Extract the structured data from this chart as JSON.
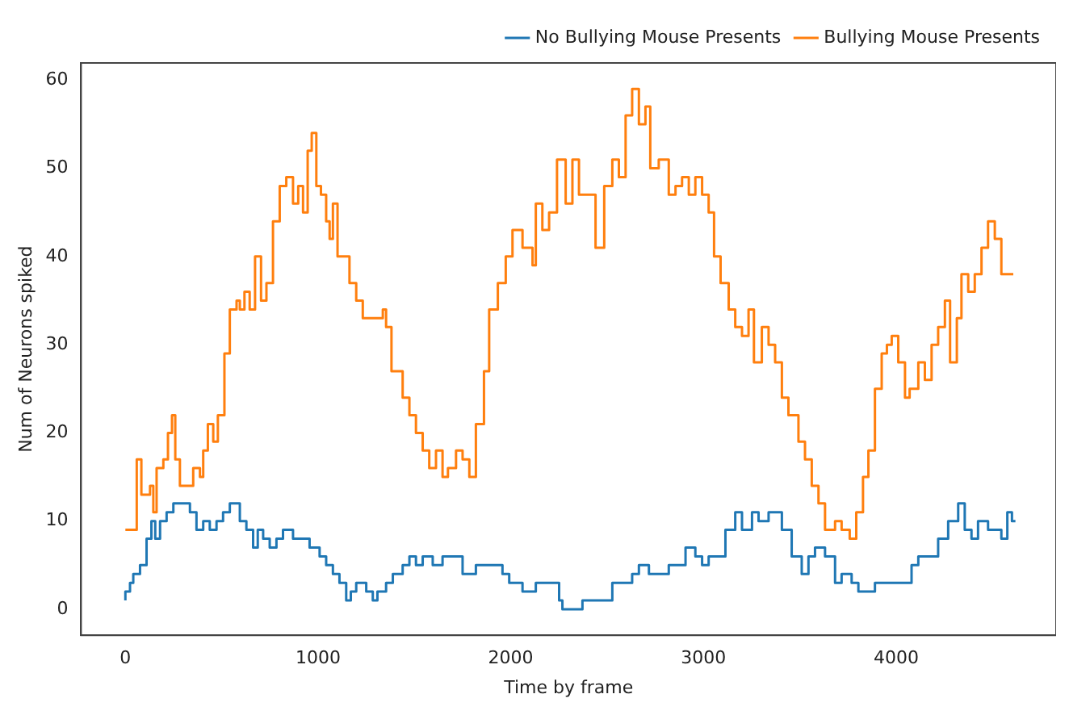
{
  "chart_data": {
    "type": "step",
    "xlabel": "Time by frame",
    "ylabel": "Num of Neurons spiked",
    "xlim": [
      -230,
      4830
    ],
    "ylim": [
      -2.95,
      61.95
    ],
    "xticks": [
      0,
      1000,
      2000,
      3000,
      4000
    ],
    "yticks": [
      0,
      10,
      20,
      30,
      40,
      50,
      60
    ],
    "grid": false,
    "legend": "top right",
    "series": [
      {
        "name": "No Bullying Mouse Presents",
        "color": "#1f77b4",
        "x": [
          0,
          24,
          41,
          76,
          110,
          135,
          155,
          180,
          214,
          249,
          335,
          369,
          404,
          438,
          473,
          507,
          542,
          594,
          628,
          663,
          687,
          715,
          749,
          784,
          818,
          870,
          956,
          1008,
          1042,
          1077,
          1111,
          1146,
          1170,
          1198,
          1250,
          1284,
          1308,
          1353,
          1388,
          1439,
          1474,
          1508,
          1543,
          1595,
          1646,
          1750,
          1819,
          1957,
          1992,
          2061,
          2130,
          2251,
          2268,
          2372,
          2527,
          2630,
          2665,
          2717,
          2820,
          2907,
          2958,
          2993,
          3027,
          3114,
          3165,
          3200,
          3252,
          3286,
          3338,
          3407,
          3458,
          3510,
          3545,
          3579,
          3631,
          3683,
          3717,
          3769,
          3804,
          3890,
          4080,
          4115,
          4218,
          4270,
          4322,
          4356,
          4391,
          4425,
          4477,
          4546,
          4577,
          4601,
          4619
        ],
        "values": [
          1,
          2,
          3,
          4,
          5,
          8,
          10,
          8,
          10,
          11,
          12,
          11,
          9,
          10,
          9,
          10,
          11,
          12,
          10,
          9,
          7,
          9,
          8,
          7,
          8,
          9,
          8,
          7,
          6,
          5,
          4,
          3,
          1,
          2,
          3,
          2,
          1,
          2,
          3,
          4,
          5,
          6,
          5,
          6,
          5,
          6,
          4,
          5,
          4,
          3,
          2,
          3,
          1,
          0,
          1,
          3,
          4,
          5,
          4,
          5,
          7,
          6,
          5,
          6,
          9,
          11,
          9,
          11,
          10,
          11,
          9,
          6,
          4,
          6,
          7,
          6,
          3,
          4,
          3,
          2,
          3,
          5,
          6,
          8,
          10,
          12,
          9,
          8,
          10,
          9,
          8,
          11,
          10
        ]
      },
      {
        "name": "Bullying Mouse Presents",
        "color": "#ff7f0e",
        "x": [
          0,
          59,
          83,
          104,
          128,
          145,
          162,
          197,
          221,
          242,
          259,
          283,
          307,
          352,
          387,
          404,
          428,
          456,
          480,
          514,
          542,
          577,
          594,
          618,
          645,
          673,
          704,
          732,
          766,
          801,
          835,
          870,
          897,
          922,
          946,
          967,
          991,
          1015,
          1042,
          1060,
          1077,
          1101,
          1129,
          1163,
          1198,
          1232,
          1256,
          1336,
          1353,
          1381,
          1405,
          1439,
          1474,
          1508,
          1543,
          1577,
          1612,
          1646,
          1674,
          1716,
          1750,
          1785,
          1819,
          1861,
          1888,
          1933,
          1974,
          2009,
          2061,
          2113,
          2130,
          2164,
          2199,
          2240,
          2285,
          2320,
          2354,
          2389,
          2440,
          2485,
          2527,
          2561,
          2596,
          2630,
          2665,
          2699,
          2724,
          2768,
          2820,
          2855,
          2889,
          2924,
          2958,
          2993,
          3027,
          3055,
          3089,
          3131,
          3165,
          3200,
          3234,
          3262,
          3303,
          3338,
          3372,
          3407,
          3441,
          3493,
          3527,
          3562,
          3597,
          3631,
          3683,
          3717,
          3759,
          3793,
          3828,
          3856,
          3890,
          3925,
          3952,
          3977,
          4011,
          4046,
          4070,
          4115,
          4149,
          4184,
          4218,
          4253,
          4280,
          4315,
          4339,
          4374,
          4408,
          4443,
          4477,
          4512,
          4546,
          4591,
          4608
        ],
        "values": [
          9,
          9,
          17,
          13,
          13,
          14,
          11,
          16,
          17,
          20,
          22,
          17,
          14,
          14,
          16,
          15,
          18,
          21,
          19,
          22,
          29,
          34,
          35,
          34,
          36,
          34,
          40,
          35,
          37,
          44,
          48,
          49,
          46,
          48,
          45,
          52,
          54,
          48,
          47,
          44,
          42,
          46,
          40,
          40,
          37,
          35,
          33,
          33,
          34,
          32,
          27,
          27,
          24,
          22,
          20,
          18,
          16,
          18,
          15,
          16,
          18,
          17,
          15,
          21,
          27,
          34,
          37,
          40,
          43,
          41,
          39,
          46,
          43,
          45,
          51,
          46,
          51,
          47,
          47,
          41,
          48,
          51,
          49,
          56,
          59,
          55,
          57,
          50,
          51,
          47,
          48,
          49,
          47,
          49,
          47,
          45,
          40,
          37,
          34,
          32,
          31,
          34,
          28,
          32,
          30,
          28,
          24,
          22,
          19,
          17,
          14,
          12,
          9,
          10,
          9,
          8,
          11,
          15,
          18,
          25,
          29,
          30,
          31,
          28,
          24,
          25,
          28,
          26,
          30,
          32,
          35,
          28,
          33,
          38,
          36,
          38,
          41,
          44,
          42,
          38,
          38
        ]
      }
    ]
  }
}
